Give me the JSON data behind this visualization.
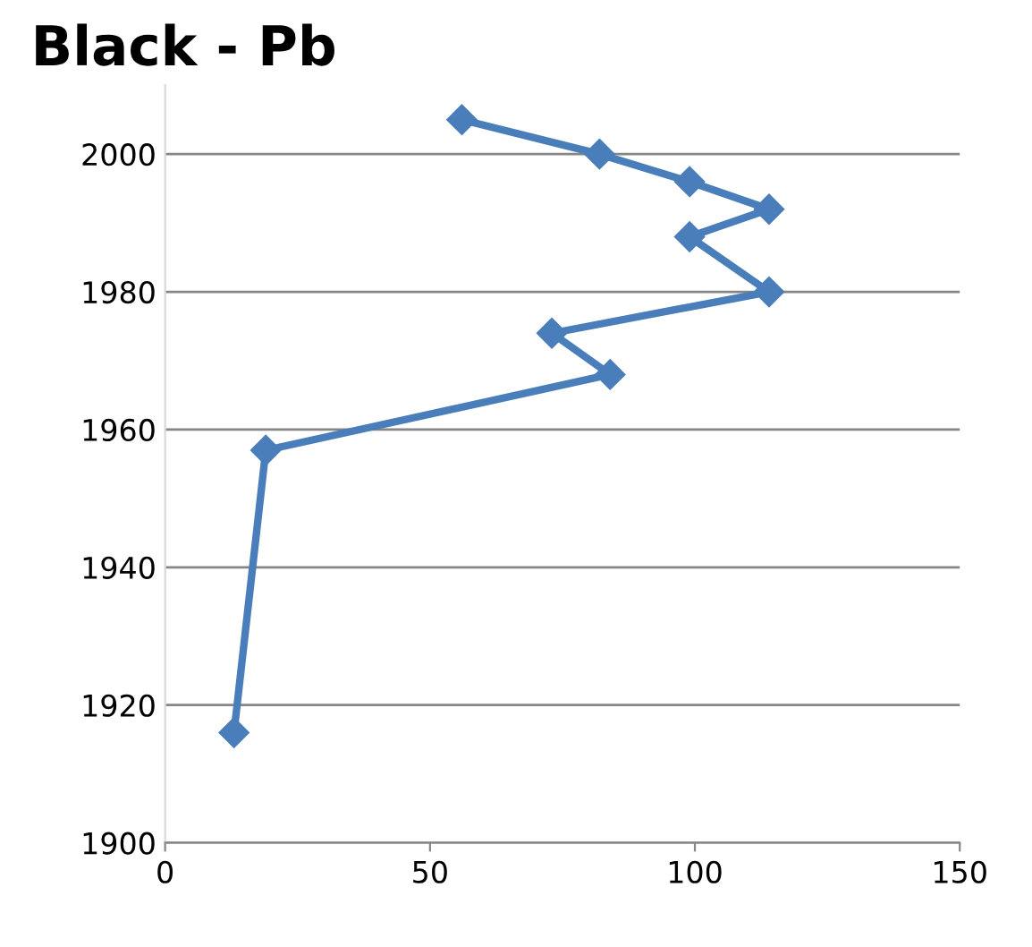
{
  "chart_data": {
    "type": "line",
    "title": "Black - Pb",
    "x": [
      56,
      82,
      99,
      114,
      99,
      114,
      73,
      84,
      19,
      13
    ],
    "series": [
      {
        "color": "#4a7ebb",
        "values": [
          2005,
          2000,
          1996,
          1992,
          1988,
          1980,
          1974,
          1968,
          1957,
          1916
        ]
      }
    ],
    "xlim": [
      0,
      150
    ],
    "xticks": [
      0,
      50,
      100,
      150
    ],
    "ylim": [
      1900,
      2010
    ],
    "yticks": [
      1900,
      1920,
      1940,
      1960,
      1980,
      2000
    ],
    "grid": "y",
    "marker": "diamond",
    "line_style": "solid"
  }
}
